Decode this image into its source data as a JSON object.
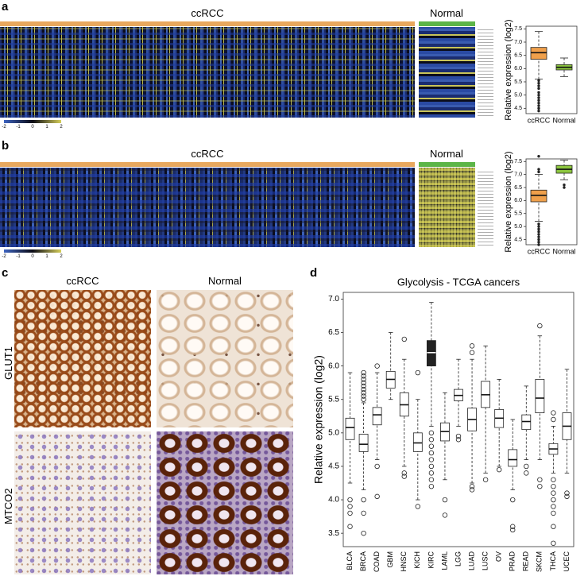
{
  "panel_labels": [
    "a",
    "b",
    "c",
    "d"
  ],
  "heatmaps": [
    {
      "group_labels": [
        "ccRCC",
        "Normal"
      ],
      "colorbar_ticks": [
        -2,
        -1,
        0,
        1,
        2
      ]
    },
    {
      "group_labels": [
        "ccRCC",
        "Normal"
      ],
      "colorbar_ticks": [
        -2,
        -1,
        0,
        1,
        2
      ]
    }
  ],
  "micrographs": {
    "columns": [
      "ccRCC",
      "Normal"
    ],
    "rows": [
      "GLUT1",
      "MTCO2"
    ]
  },
  "chart_data": [
    {
      "type": "box",
      "ylabel": "Relative expression (log2)",
      "categories": [
        "ccRCC",
        "Normal"
      ],
      "colors": [
        "#f0a04b",
        "#8cc63f"
      ],
      "ylim": [
        4.3,
        7.6
      ],
      "yticks": [
        4.5,
        {
          "value": 5,
          "label": "5.0"
        },
        5.5,
        {
          "value": 6,
          "label": "6.0"
        },
        6.5,
        {
          "value": 7,
          "label": "7.0"
        },
        7.5
      ],
      "boxes": [
        {
          "min": 5.6,
          "q1": 6.35,
          "median": 6.6,
          "q3": 6.8,
          "max": 7.4,
          "outliers": [
            5.55,
            5.45,
            5.35,
            5.25,
            5.1,
            5.0,
            4.9,
            4.8,
            4.7,
            4.6,
            4.5,
            4.4
          ]
        },
        {
          "min": 5.7,
          "q1": 5.95,
          "median": 6.05,
          "q3": 6.15,
          "max": 6.4,
          "outliers": []
        }
      ]
    },
    {
      "type": "box",
      "ylabel": "Relative expression (log2)",
      "categories": [
        "ccRCC",
        "Normal"
      ],
      "colors": [
        "#f0a04b",
        "#8cc63f"
      ],
      "ylim": [
        4.3,
        7.6
      ],
      "yticks": [
        4.5,
        {
          "value": 5,
          "label": "5.0"
        },
        5.5,
        {
          "value": 6,
          "label": "6.0"
        },
        6.5,
        {
          "value": 7,
          "label": "7.0"
        },
        7.5
      ],
      "boxes": [
        {
          "min": 5.2,
          "q1": 5.95,
          "median": 6.2,
          "q3": 6.4,
          "max": 7.0,
          "outliers": [
            7.1,
            7.2,
            7.7,
            5.1,
            5.0,
            4.9,
            4.8,
            4.7,
            4.6,
            4.5,
            4.4,
            4.3
          ]
        },
        {
          "min": 6.8,
          "q1": 7.05,
          "median": 7.2,
          "q3": 7.35,
          "max": 7.55,
          "outliers": [
            6.6,
            6.5
          ]
        }
      ]
    },
    {
      "type": "box",
      "title": "Glycolysis - TCGA cancers",
      "ylabel": "Relative expression (log2)",
      "categories": [
        "BLCA",
        "BRCA",
        "COAD",
        "GBM",
        "HNSC",
        "KICH",
        "KIRC",
        "LAML",
        "LGG",
        "LUAD",
        "LUSC",
        "OV",
        "PRAD",
        "READ",
        "SKCM",
        "THCA",
        "UCEC"
      ],
      "colors": [
        "#ffffff",
        "#ffffff",
        "#ffffff",
        "#ffffff",
        "#ffffff",
        "#ffffff",
        "#222222",
        "#ffffff",
        "#ffffff",
        "#ffffff",
        "#ffffff",
        "#ffffff",
        "#ffffff",
        "#ffffff",
        "#ffffff",
        "#ffffff",
        "#ffffff"
      ],
      "ylim": [
        3.3,
        7.1
      ],
      "yticks": [
        3.5,
        {
          "value": 4,
          "label": "4.0"
        },
        4.5,
        {
          "value": 5,
          "label": "5.0"
        },
        5.5,
        {
          "value": 6,
          "label": "6.0"
        },
        6.5,
        {
          "value": 7,
          "label": "7.0"
        }
      ],
      "boxes": [
        {
          "min": 4.25,
          "q1": 4.9,
          "median": 5.08,
          "q3": 5.22,
          "max": 5.9,
          "outliers": [
            4.0,
            3.9,
            3.8,
            3.6
          ]
        },
        {
          "min": 4.15,
          "q1": 4.72,
          "median": 4.83,
          "q3": 4.98,
          "max": 5.45,
          "outliers": [
            5.5,
            5.55,
            5.6,
            5.65,
            5.7,
            5.75,
            5.8,
            5.85,
            5.9,
            4.0,
            3.8,
            3.5
          ]
        },
        {
          "min": 4.6,
          "q1": 5.12,
          "median": 5.27,
          "q3": 5.38,
          "max": 5.9,
          "outliers": [
            6.0,
            4.5,
            4.05
          ]
        },
        {
          "min": 5.5,
          "q1": 5.67,
          "median": 5.8,
          "q3": 5.92,
          "max": 6.5,
          "outliers": []
        },
        {
          "min": 4.5,
          "q1": 5.25,
          "median": 5.42,
          "q3": 5.6,
          "max": 6.1,
          "outliers": [
            6.4,
            4.4,
            4.35
          ]
        },
        {
          "min": 4.0,
          "q1": 4.72,
          "median": 4.85,
          "q3": 5.0,
          "max": 5.5,
          "outliers": [
            5.9,
            3.9
          ]
        },
        {
          "min": 5.1,
          "q1": 6.0,
          "median": 6.2,
          "q3": 6.38,
          "max": 6.95,
          "outliers": [
            5.0,
            4.9,
            4.8,
            4.7,
            4.6,
            4.5,
            4.4,
            4.3,
            4.2
          ]
        },
        {
          "min": 4.3,
          "q1": 4.88,
          "median": 5.02,
          "q3": 5.15,
          "max": 5.6,
          "outliers": [
            4.0,
            3.77
          ]
        },
        {
          "min": 5.1,
          "q1": 5.48,
          "median": 5.56,
          "q3": 5.65,
          "max": 6.1,
          "outliers": [
            4.95,
            4.9
          ]
        },
        {
          "min": 4.25,
          "q1": 5.03,
          "median": 5.2,
          "q3": 5.37,
          "max": 6.1,
          "outliers": [
            6.2,
            6.3,
            4.2,
            4.15
          ]
        },
        {
          "min": 4.4,
          "q1": 5.38,
          "median": 5.57,
          "q3": 5.77,
          "max": 6.3,
          "outliers": [
            4.3
          ]
        },
        {
          "min": 4.5,
          "q1": 5.08,
          "median": 5.22,
          "q3": 5.35,
          "max": 5.8,
          "outliers": [
            4.45
          ]
        },
        {
          "min": 4.15,
          "q1": 4.5,
          "median": 4.6,
          "q3": 4.75,
          "max": 5.2,
          "outliers": [
            4.0,
            3.6,
            3.55
          ]
        },
        {
          "min": 4.6,
          "q1": 5.05,
          "median": 5.17,
          "q3": 5.27,
          "max": 5.7,
          "outliers": [
            4.5,
            4.4
          ]
        },
        {
          "min": 4.6,
          "q1": 5.3,
          "median": 5.52,
          "q3": 5.8,
          "max": 6.45,
          "outliers": [
            6.6,
            4.3,
            4.2
          ]
        },
        {
          "min": 4.4,
          "q1": 4.68,
          "median": 4.76,
          "q3": 4.84,
          "max": 5.1,
          "outliers": [
            5.2,
            5.3,
            4.3,
            4.2,
            4.1,
            4.0,
            3.9,
            3.8,
            3.6,
            3.35
          ]
        },
        {
          "min": 4.4,
          "q1": 4.9,
          "median": 5.1,
          "q3": 5.3,
          "max": 5.95,
          "outliers": [
            4.1,
            4.05
          ]
        }
      ]
    }
  ]
}
